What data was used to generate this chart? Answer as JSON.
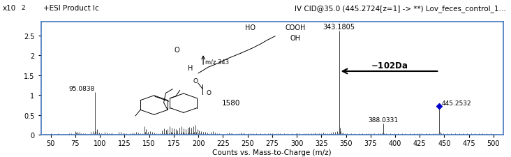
{
  "title_left": "+ESI Product Ic",
  "title_right": "IV CID@35.0 (445.2724[z=1] -> **) Lov_feces_control_1...",
  "ylabel_exp": "x10",
  "ylabel_exp2": "2",
  "xlabel": "Counts vs. Mass-to-Charge (m/z)",
  "xmin": 40,
  "xmax": 510,
  "ymin": 0,
  "ymax": 2.85,
  "ytick_vals": [
    0,
    0.5,
    1.0,
    1.5,
    2.0,
    2.5
  ],
  "ytick_labels": [
    "0",
    "0.5",
    "1",
    "1.5",
    "2",
    "2.5"
  ],
  "xticks": [
    50,
    75,
    100,
    125,
    150,
    175,
    200,
    225,
    250,
    275,
    300,
    325,
    350,
    375,
    400,
    425,
    450,
    475,
    500
  ],
  "border_color": "#4477bb",
  "peak_color": "#000000",
  "blue_marker_color": "#0000cc",
  "arrow_color": "#000000",
  "bg_color": "#ffffff",
  "label_95": "95.0838",
  "label_343": "343.1805",
  "label_388": "388.0331",
  "label_445": "445.2532",
  "label_1580": "1580",
  "arrow_label": "-102Da",
  "mz_label": "m/z 343",
  "mol_HO": "HO",
  "mol_COOH": "COOH",
  "mol_OH": "OH",
  "mol_O": "O",
  "mol_H": "H",
  "peaks": [
    [
      44,
      0.02
    ],
    [
      45,
      0.02
    ],
    [
      46,
      0.015
    ],
    [
      47,
      0.01
    ],
    [
      48,
      0.01
    ],
    [
      50,
      0.04
    ],
    [
      51,
      0.025
    ],
    [
      52,
      0.02
    ],
    [
      53,
      0.02
    ],
    [
      54,
      0.015
    ],
    [
      55,
      0.03
    ],
    [
      56,
      0.025
    ],
    [
      57,
      0.04
    ],
    [
      58,
      0.015
    ],
    [
      59,
      0.02
    ],
    [
      60,
      0.015
    ],
    [
      61,
      0.01
    ],
    [
      62,
      0.015
    ],
    [
      63,
      0.02
    ],
    [
      64,
      0.01
    ],
    [
      65,
      0.025
    ],
    [
      66,
      0.015
    ],
    [
      67,
      0.03
    ],
    [
      68,
      0.02
    ],
    [
      69,
      0.04
    ],
    [
      70,
      0.025
    ],
    [
      71,
      0.05
    ],
    [
      72,
      0.015
    ],
    [
      73,
      0.025
    ],
    [
      74,
      0.02
    ],
    [
      75,
      0.1
    ],
    [
      76,
      0.06
    ],
    [
      77,
      0.08
    ],
    [
      78,
      0.04
    ],
    [
      79,
      0.07
    ],
    [
      80,
      0.03
    ],
    [
      81,
      0.05
    ],
    [
      82,
      0.03
    ],
    [
      83,
      0.04
    ],
    [
      84,
      0.02
    ],
    [
      85,
      0.05
    ],
    [
      86,
      0.02
    ],
    [
      87,
      0.03
    ],
    [
      88,
      0.02
    ],
    [
      89,
      0.025
    ],
    [
      90,
      0.02
    ],
    [
      91,
      0.07
    ],
    [
      92,
      0.03
    ],
    [
      93,
      0.1
    ],
    [
      94,
      0.04
    ],
    [
      95,
      1.08
    ],
    [
      96,
      0.1
    ],
    [
      97,
      0.15
    ],
    [
      98,
      0.05
    ],
    [
      99,
      0.06
    ],
    [
      100,
      0.03
    ],
    [
      101,
      0.04
    ],
    [
      102,
      0.025
    ],
    [
      103,
      0.035
    ],
    [
      104,
      0.02
    ],
    [
      105,
      0.07
    ],
    [
      106,
      0.025
    ],
    [
      107,
      0.06
    ],
    [
      108,
      0.025
    ],
    [
      109,
      0.05
    ],
    [
      110,
      0.02
    ],
    [
      111,
      0.04
    ],
    [
      112,
      0.015
    ],
    [
      113,
      0.04
    ],
    [
      114,
      0.02
    ],
    [
      115,
      0.03
    ],
    [
      116,
      0.015
    ],
    [
      117,
      0.03
    ],
    [
      118,
      0.015
    ],
    [
      119,
      0.08
    ],
    [
      120,
      0.03
    ],
    [
      121,
      0.07
    ],
    [
      122,
      0.025
    ],
    [
      123,
      0.05
    ],
    [
      124,
      0.02
    ],
    [
      125,
      0.04
    ],
    [
      126,
      0.02
    ],
    [
      127,
      0.05
    ],
    [
      128,
      0.02
    ],
    [
      129,
      0.03
    ],
    [
      130,
      0.015
    ],
    [
      131,
      0.04
    ],
    [
      132,
      0.015
    ],
    [
      133,
      0.06
    ],
    [
      134,
      0.02
    ],
    [
      135,
      0.05
    ],
    [
      136,
      0.02
    ],
    [
      137,
      0.07
    ],
    [
      138,
      0.02
    ],
    [
      139,
      0.06
    ],
    [
      140,
      0.02
    ],
    [
      141,
      0.04
    ],
    [
      142,
      0.015
    ],
    [
      143,
      0.05
    ],
    [
      144,
      0.02
    ],
    [
      145,
      0.22
    ],
    [
      146,
      0.08
    ],
    [
      147,
      0.14
    ],
    [
      148,
      0.04
    ],
    [
      149,
      0.07
    ],
    [
      150,
      0.03
    ],
    [
      151,
      0.1
    ],
    [
      152,
      0.03
    ],
    [
      153,
      0.08
    ],
    [
      154,
      0.025
    ],
    [
      155,
      0.06
    ],
    [
      156,
      0.02
    ],
    [
      157,
      0.05
    ],
    [
      158,
      0.02
    ],
    [
      159,
      0.04
    ],
    [
      160,
      0.015
    ],
    [
      161,
      0.05
    ],
    [
      162,
      0.02
    ],
    [
      163,
      0.12
    ],
    [
      164,
      0.04
    ],
    [
      165,
      0.16
    ],
    [
      166,
      0.05
    ],
    [
      167,
      0.13
    ],
    [
      168,
      0.04
    ],
    [
      169,
      0.14
    ],
    [
      170,
      0.05
    ],
    [
      171,
      0.22
    ],
    [
      172,
      0.08
    ],
    [
      173,
      0.18
    ],
    [
      174,
      0.06
    ],
    [
      175,
      0.17
    ],
    [
      176,
      0.06
    ],
    [
      177,
      0.15
    ],
    [
      178,
      0.05
    ],
    [
      179,
      0.12
    ],
    [
      180,
      0.04
    ],
    [
      181,
      0.18
    ],
    [
      182,
      0.06
    ],
    [
      183,
      0.22
    ],
    [
      184,
      0.07
    ],
    [
      185,
      0.17
    ],
    [
      186,
      0.05
    ],
    [
      187,
      0.15
    ],
    [
      188,
      0.05
    ],
    [
      189,
      0.19
    ],
    [
      190,
      0.06
    ],
    [
      191,
      0.2
    ],
    [
      192,
      0.06
    ],
    [
      193,
      0.18
    ],
    [
      194,
      0.06
    ],
    [
      195,
      0.22
    ],
    [
      196,
      0.07
    ],
    [
      197,
      0.26
    ],
    [
      198,
      0.08
    ],
    [
      199,
      0.15
    ],
    [
      200,
      0.05
    ],
    [
      201,
      0.12
    ],
    [
      202,
      0.04
    ],
    [
      203,
      0.1
    ],
    [
      204,
      0.03
    ],
    [
      205,
      0.08
    ],
    [
      206,
      0.025
    ],
    [
      207,
      0.07
    ],
    [
      208,
      0.02
    ],
    [
      209,
      0.06
    ],
    [
      210,
      0.02
    ],
    [
      211,
      0.05
    ],
    [
      212,
      0.015
    ],
    [
      213,
      0.07
    ],
    [
      214,
      0.02
    ],
    [
      215,
      0.09
    ],
    [
      216,
      0.025
    ],
    [
      217,
      0.06
    ],
    [
      218,
      0.02
    ],
    [
      219,
      0.05
    ],
    [
      220,
      0.015
    ],
    [
      221,
      0.04
    ],
    [
      222,
      0.01
    ],
    [
      223,
      0.03
    ],
    [
      224,
      0.01
    ],
    [
      225,
      0.03
    ],
    [
      226,
      0.01
    ],
    [
      227,
      0.025
    ],
    [
      228,
      0.01
    ],
    [
      229,
      0.04
    ],
    [
      230,
      0.015
    ],
    [
      231,
      0.06
    ],
    [
      232,
      0.02
    ],
    [
      233,
      0.05
    ],
    [
      234,
      0.015
    ],
    [
      235,
      0.04
    ],
    [
      236,
      0.01
    ],
    [
      237,
      0.03
    ],
    [
      238,
      0.01
    ],
    [
      239,
      0.04
    ],
    [
      240,
      0.015
    ],
    [
      241,
      0.05
    ],
    [
      242,
      0.015
    ],
    [
      243,
      0.06
    ],
    [
      244,
      0.02
    ],
    [
      245,
      0.05
    ],
    [
      246,
      0.015
    ],
    [
      247,
      0.04
    ],
    [
      248,
      0.01
    ],
    [
      249,
      0.03
    ],
    [
      250,
      0.01
    ],
    [
      251,
      0.04
    ],
    [
      252,
      0.01
    ],
    [
      253,
      0.05
    ],
    [
      254,
      0.015
    ],
    [
      255,
      0.04
    ],
    [
      256,
      0.01
    ],
    [
      257,
      0.03
    ],
    [
      258,
      0.01
    ],
    [
      259,
      0.04
    ],
    [
      260,
      0.01
    ],
    [
      261,
      0.03
    ],
    [
      262,
      0.01
    ],
    [
      263,
      0.04
    ],
    [
      264,
      0.01
    ],
    [
      265,
      0.03
    ],
    [
      266,
      0.01
    ],
    [
      267,
      0.04
    ],
    [
      268,
      0.01
    ],
    [
      269,
      0.03
    ],
    [
      270,
      0.01
    ],
    [
      271,
      0.04
    ],
    [
      272,
      0.01
    ],
    [
      273,
      0.05
    ],
    [
      274,
      0.015
    ],
    [
      275,
      0.04
    ],
    [
      276,
      0.01
    ],
    [
      277,
      0.03
    ],
    [
      278,
      0.01
    ],
    [
      279,
      0.04
    ],
    [
      280,
      0.01
    ],
    [
      281,
      0.05
    ],
    [
      282,
      0.015
    ],
    [
      283,
      0.04
    ],
    [
      284,
      0.01
    ],
    [
      285,
      0.03
    ],
    [
      286,
      0.01
    ],
    [
      287,
      0.04
    ],
    [
      288,
      0.01
    ],
    [
      289,
      0.03
    ],
    [
      290,
      0.01
    ],
    [
      291,
      0.04
    ],
    [
      292,
      0.01
    ],
    [
      293,
      0.03
    ],
    [
      294,
      0.01
    ],
    [
      295,
      0.04
    ],
    [
      296,
      0.01
    ],
    [
      297,
      0.03
    ],
    [
      298,
      0.01
    ],
    [
      299,
      0.04
    ],
    [
      300,
      0.015
    ],
    [
      301,
      0.05
    ],
    [
      302,
      0.015
    ],
    [
      303,
      0.04
    ],
    [
      304,
      0.01
    ],
    [
      305,
      0.03
    ],
    [
      306,
      0.01
    ],
    [
      307,
      0.04
    ],
    [
      308,
      0.01
    ],
    [
      309,
      0.05
    ],
    [
      310,
      0.015
    ],
    [
      311,
      0.04
    ],
    [
      312,
      0.01
    ],
    [
      313,
      0.03
    ],
    [
      314,
      0.01
    ],
    [
      315,
      0.04
    ],
    [
      316,
      0.01
    ],
    [
      317,
      0.05
    ],
    [
      318,
      0.015
    ],
    [
      319,
      0.06
    ],
    [
      320,
      0.02
    ],
    [
      321,
      0.05
    ],
    [
      322,
      0.015
    ],
    [
      323,
      0.04
    ],
    [
      324,
      0.01
    ],
    [
      325,
      0.05
    ],
    [
      326,
      0.015
    ],
    [
      327,
      0.06
    ],
    [
      328,
      0.02
    ],
    [
      329,
      0.05
    ],
    [
      330,
      0.015
    ],
    [
      331,
      0.04
    ],
    [
      332,
      0.015
    ],
    [
      333,
      0.05
    ],
    [
      334,
      0.02
    ],
    [
      335,
      0.06
    ],
    [
      336,
      0.02
    ],
    [
      337,
      0.07
    ],
    [
      338,
      0.025
    ],
    [
      339,
      0.08
    ],
    [
      340,
      0.03
    ],
    [
      341,
      0.09
    ],
    [
      342,
      0.04
    ],
    [
      343,
      2.62
    ],
    [
      344,
      0.18
    ],
    [
      345,
      0.1
    ],
    [
      346,
      0.04
    ],
    [
      347,
      0.06
    ],
    [
      348,
      0.02
    ],
    [
      349,
      0.05
    ],
    [
      350,
      0.015
    ],
    [
      351,
      0.04
    ],
    [
      352,
      0.01
    ],
    [
      353,
      0.03
    ],
    [
      354,
      0.01
    ],
    [
      355,
      0.04
    ],
    [
      356,
      0.01
    ],
    [
      357,
      0.03
    ],
    [
      358,
      0.01
    ],
    [
      359,
      0.04
    ],
    [
      360,
      0.01
    ],
    [
      361,
      0.03
    ],
    [
      362,
      0.01
    ],
    [
      363,
      0.04
    ],
    [
      364,
      0.01
    ],
    [
      365,
      0.03
    ],
    [
      366,
      0.01
    ],
    [
      367,
      0.04
    ],
    [
      368,
      0.01
    ],
    [
      369,
      0.03
    ],
    [
      370,
      0.01
    ],
    [
      371,
      0.04
    ],
    [
      372,
      0.01
    ],
    [
      373,
      0.05
    ],
    [
      374,
      0.015
    ],
    [
      375,
      0.04
    ],
    [
      376,
      0.01
    ],
    [
      377,
      0.03
    ],
    [
      378,
      0.01
    ],
    [
      379,
      0.04
    ],
    [
      380,
      0.01
    ],
    [
      381,
      0.03
    ],
    [
      382,
      0.01
    ],
    [
      383,
      0.04
    ],
    [
      384,
      0.015
    ],
    [
      385,
      0.05
    ],
    [
      386,
      0.015
    ],
    [
      387,
      0.06
    ],
    [
      388,
      0.28
    ],
    [
      389,
      0.05
    ],
    [
      390,
      0.015
    ],
    [
      391,
      0.04
    ],
    [
      392,
      0.01
    ],
    [
      393,
      0.03
    ],
    [
      394,
      0.01
    ],
    [
      395,
      0.04
    ],
    [
      396,
      0.01
    ],
    [
      397,
      0.03
    ],
    [
      398,
      0.01
    ],
    [
      399,
      0.04
    ],
    [
      400,
      0.01
    ],
    [
      401,
      0.03
    ],
    [
      402,
      0.01
    ],
    [
      403,
      0.04
    ],
    [
      404,
      0.01
    ],
    [
      405,
      0.03
    ],
    [
      406,
      0.01
    ],
    [
      407,
      0.04
    ],
    [
      408,
      0.01
    ],
    [
      409,
      0.03
    ],
    [
      410,
      0.01
    ],
    [
      411,
      0.04
    ],
    [
      412,
      0.01
    ],
    [
      413,
      0.03
    ],
    [
      414,
      0.01
    ],
    [
      415,
      0.04
    ],
    [
      416,
      0.01
    ],
    [
      417,
      0.03
    ],
    [
      418,
      0.01
    ],
    [
      419,
      0.04
    ],
    [
      420,
      0.01
    ],
    [
      421,
      0.03
    ],
    [
      422,
      0.01
    ],
    [
      423,
      0.04
    ],
    [
      424,
      0.015
    ],
    [
      425,
      0.05
    ],
    [
      426,
      0.015
    ],
    [
      427,
      0.04
    ],
    [
      428,
      0.01
    ],
    [
      429,
      0.03
    ],
    [
      430,
      0.01
    ],
    [
      431,
      0.04
    ],
    [
      432,
      0.01
    ],
    [
      433,
      0.03
    ],
    [
      434,
      0.01
    ],
    [
      435,
      0.04
    ],
    [
      436,
      0.01
    ],
    [
      437,
      0.03
    ],
    [
      438,
      0.01
    ],
    [
      439,
      0.04
    ],
    [
      440,
      0.015
    ],
    [
      441,
      0.05
    ],
    [
      442,
      0.015
    ],
    [
      443,
      0.04
    ],
    [
      444,
      0.015
    ],
    [
      445,
      0.72
    ],
    [
      446,
      0.08
    ],
    [
      447,
      0.05
    ],
    [
      448,
      0.015
    ],
    [
      449,
      0.04
    ],
    [
      450,
      0.015
    ],
    [
      451,
      0.03
    ],
    [
      452,
      0.01
    ],
    [
      453,
      0.04
    ],
    [
      454,
      0.01
    ],
    [
      455,
      0.03
    ],
    [
      456,
      0.01
    ],
    [
      457,
      0.04
    ],
    [
      458,
      0.01
    ],
    [
      459,
      0.03
    ],
    [
      460,
      0.01
    ],
    [
      461,
      0.04
    ],
    [
      462,
      0.01
    ],
    [
      463,
      0.03
    ],
    [
      464,
      0.01
    ],
    [
      465,
      0.04
    ],
    [
      466,
      0.01
    ],
    [
      467,
      0.03
    ],
    [
      468,
      0.01
    ],
    [
      469,
      0.04
    ],
    [
      470,
      0.01
    ],
    [
      471,
      0.03
    ],
    [
      472,
      0.01
    ],
    [
      473,
      0.04
    ],
    [
      474,
      0.01
    ],
    [
      475,
      0.03
    ],
    [
      476,
      0.01
    ],
    [
      477,
      0.04
    ],
    [
      478,
      0.01
    ],
    [
      479,
      0.03
    ],
    [
      480,
      0.01
    ],
    [
      481,
      0.04
    ],
    [
      482,
      0.01
    ],
    [
      483,
      0.03
    ],
    [
      484,
      0.01
    ],
    [
      485,
      0.04
    ],
    [
      486,
      0.01
    ],
    [
      487,
      0.03
    ],
    [
      488,
      0.01
    ],
    [
      489,
      0.04
    ],
    [
      490,
      0.01
    ],
    [
      491,
      0.03
    ],
    [
      492,
      0.01
    ],
    [
      493,
      0.04
    ],
    [
      494,
      0.01
    ],
    [
      495,
      0.03
    ],
    [
      496,
      0.01
    ],
    [
      497,
      0.04
    ],
    [
      498,
      0.01
    ],
    [
      499,
      0.03
    ],
    [
      500,
      0.02
    ],
    [
      501,
      0.01
    ],
    [
      502,
      0.01
    ]
  ]
}
